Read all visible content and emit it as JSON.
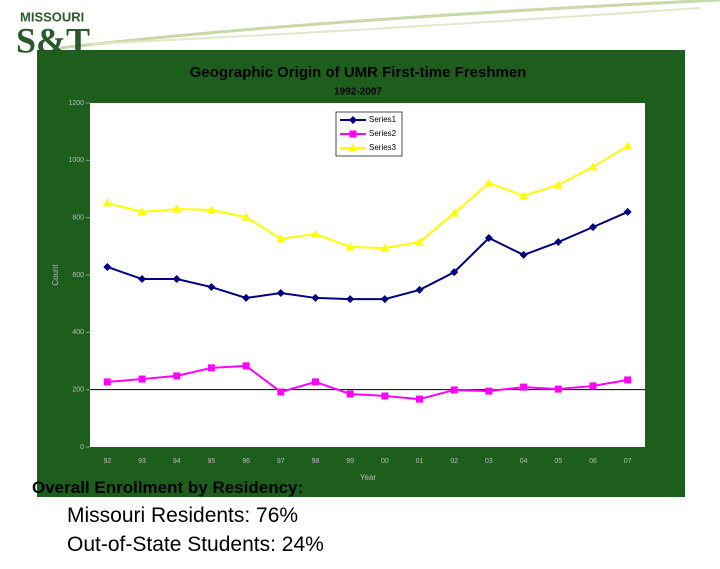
{
  "header": {
    "logo_top": "MISSOURI",
    "logo_main": "S&T"
  },
  "chart_data": {
    "type": "line",
    "title": "Geographic Origin of UMR First-time Freshmen",
    "subtitle": "1992-2007",
    "x_label": "Year",
    "y_label": "Count",
    "categories": [
      "92",
      "93",
      "94",
      "95",
      "96",
      "97",
      "98",
      "99",
      "00",
      "01",
      "02",
      "03",
      "04",
      "05",
      "06",
      "07"
    ],
    "series": [
      {
        "name": "Series1",
        "color": "#000080",
        "marker": "diamond",
        "values": [
          628,
          586,
          586,
          558,
          520,
          537,
          520,
          516,
          516,
          548,
          610,
          729,
          670,
          715,
          767,
          820
        ]
      },
      {
        "name": "Series2",
        "color": "#ff00ff",
        "marker": "square",
        "values": [
          227,
          237,
          248,
          276,
          283,
          192,
          227,
          185,
          178,
          167,
          199,
          195,
          209,
          202,
          213,
          234
        ]
      },
      {
        "name": "Series3",
        "color": "#ffff00",
        "marker": "triangle",
        "values": [
          851,
          820,
          830,
          827,
          802,
          726,
          743,
          698,
          694,
          715,
          816,
          921,
          876,
          914,
          977,
          1050
        ]
      }
    ],
    "ylim": [
      0,
      1200
    ],
    "yticks": [
      0,
      200,
      400,
      600,
      800,
      1000,
      1200
    ],
    "hline": 200,
    "background": "#1d5e1d",
    "legend": "top-center"
  },
  "footer": {
    "heading": "Overall Enrollment by Residency:",
    "items": [
      "Missouri Residents: 76%",
      "Out-of-State Students: 24%"
    ]
  }
}
